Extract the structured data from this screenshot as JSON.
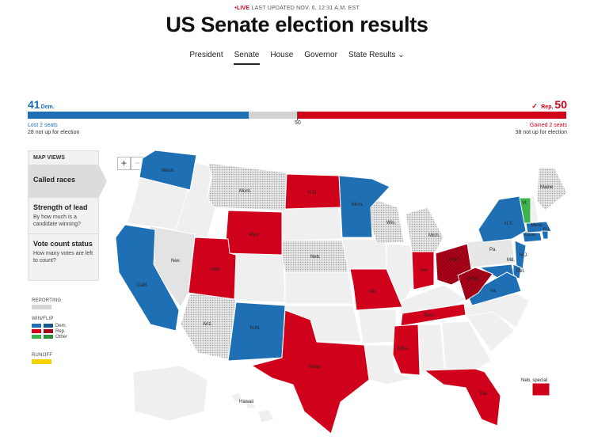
{
  "header": {
    "live_dot": "•",
    "live_label": "LIVE",
    "last_updated": "LAST UPDATED NOV. 6, 12:31 A.M. EST",
    "title": "US Senate election results"
  },
  "nav": {
    "items": [
      "President",
      "Senate",
      "House",
      "Governor",
      "State Results"
    ],
    "active": "Senate",
    "chevron": "⌄"
  },
  "tally": {
    "dem_seats": "41",
    "dem_label": "Dem.",
    "rep_check": "✓",
    "rep_label": "Rep.",
    "rep_seats": "50",
    "majority_mark": "50",
    "dem_change": "Lost 2 seats",
    "dem_not_up": "28 not up for election",
    "rep_change": "Gained 2 seats",
    "rep_not_up": "38 not up for election",
    "dem_seats_value": 41,
    "rep_seats_value": 50,
    "undecided_seats_value": 9,
    "total_seats": 100
  },
  "map_views": {
    "heading": "MAP VIEWS",
    "options": [
      {
        "title": "Called races",
        "desc": ""
      },
      {
        "title": "Strength of lead",
        "desc": "By how much is a candidate winning?"
      },
      {
        "title": "Vote count status",
        "desc": "How many votes are left to count?"
      }
    ],
    "active": "Called races"
  },
  "legend": {
    "reporting": "REPORTING",
    "win_flip": "WIN/FLIP",
    "dem": "Dem.",
    "rep": "Rep.",
    "other": "Other",
    "runoff": "RUNOFF"
  },
  "zoom": {
    "plus": "+",
    "minus": "−"
  },
  "colors": {
    "dem": "#1f6fb5",
    "rep": "#d0021b",
    "other": "#3cb44b",
    "runoff": "#f5d300",
    "no_race": "#efefef",
    "reporting": "#c8c8c8"
  },
  "map_labels": {
    "wash": "Wash.",
    "mont": "Mont.",
    "nd": "N.D.",
    "minn": "Minn.",
    "maine": "Maine",
    "vt": "Vt.",
    "wyo": "Wyo.",
    "wis": "Wis.",
    "mich": "Mich.",
    "ny": "N.Y.",
    "mass": "Mass.",
    "conn": "Conn.",
    "ri": "R.I.",
    "nev": "Nev.",
    "neb": "Neb.",
    "ohio": "Ohio",
    "pa": "Pa.",
    "nj": "N.J.",
    "del": "Del.",
    "md": "Md.",
    "calif": "Calif.",
    "utah": "Utah",
    "ind": "Ind.",
    "wva": "W.Va.",
    "va": "Va.",
    "mo": "Mo.",
    "ariz": "Ariz.",
    "nm": "N.M.",
    "tenn": "Tenn.",
    "miss": "Miss.",
    "texas": "Texas",
    "fla": "Fla.",
    "neb_special": "Neb. special",
    "hawaii": "Hawaii"
  }
}
